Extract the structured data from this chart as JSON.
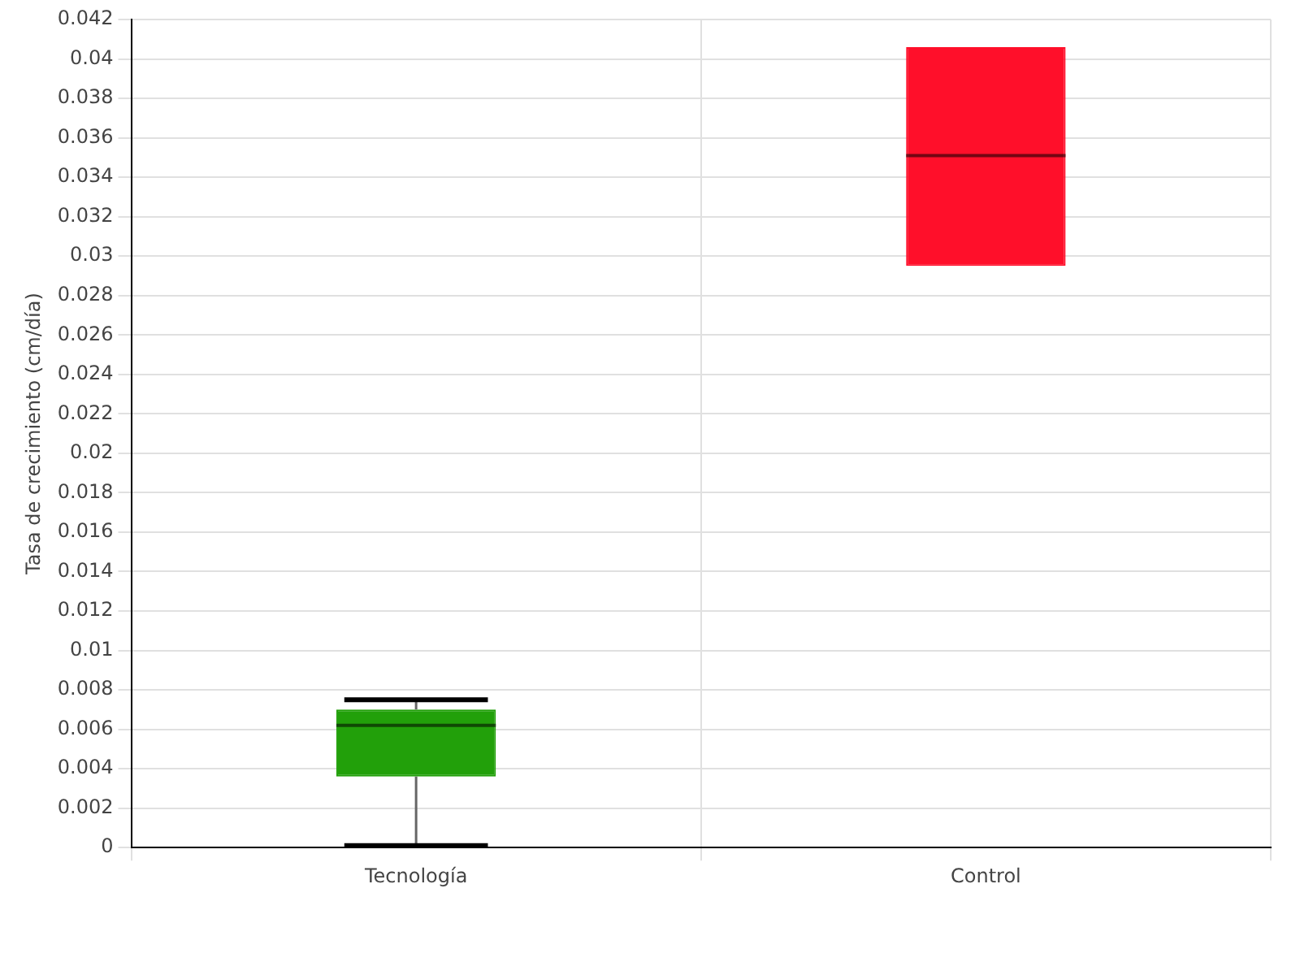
{
  "chart_data": {
    "type": "box",
    "ylabel": "Tasa de crecimiento (cm/día)",
    "categories": [
      "Tecnología",
      "Control"
    ],
    "colors": [
      "#22a00a",
      "#ff0f2a"
    ],
    "boxes": [
      {
        "low": 0.0001,
        "q1": 0.0036,
        "median": 0.0062,
        "q3": 0.007,
        "high": 0.0075
      },
      {
        "low": 0.0295,
        "q1": 0.0295,
        "median": 0.0351,
        "q3": 0.0406,
        "high": 0.0406
      }
    ],
    "ylim": [
      0,
      0.042
    ],
    "yticks": [
      0,
      0.002,
      0.004,
      0.006,
      0.008,
      0.01,
      0.012,
      0.014,
      0.016,
      0.018,
      0.02,
      0.022,
      0.024,
      0.026,
      0.028,
      0.03,
      0.032,
      0.034,
      0.036,
      0.038,
      0.04,
      0.042
    ],
    "grid": true,
    "legend": false
  }
}
